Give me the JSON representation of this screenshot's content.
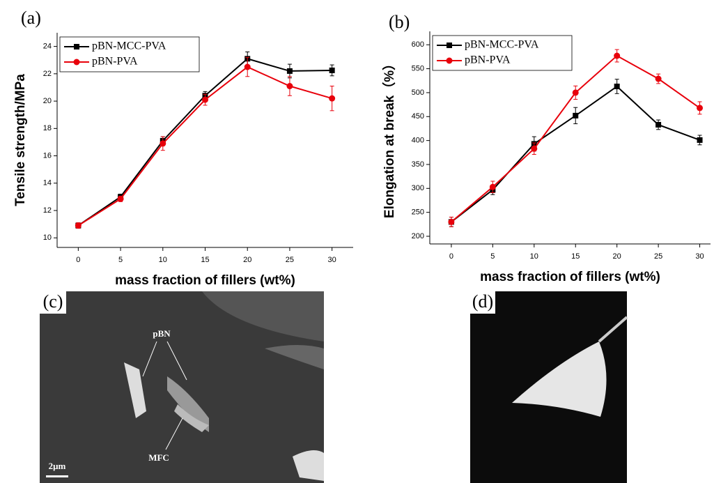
{
  "chart_data": [
    {
      "type": "line",
      "panel_label": "(a)",
      "xlabel": "mass fraction of fillers (wt%)",
      "ylabel": "Tensile strength/MPa",
      "x": [
        0,
        5,
        10,
        15,
        20,
        25,
        30
      ],
      "xlim": [
        -2.5,
        32.5
      ],
      "xticks": [
        0,
        5,
        10,
        15,
        20,
        25,
        30
      ],
      "ylim": [
        9.3,
        25
      ],
      "yticks": [
        10,
        12,
        14,
        16,
        18,
        20,
        22,
        24
      ],
      "legend": "upper left",
      "series": [
        {
          "name": "pBN-MCC-PVA",
          "color": "#000000",
          "marker": "square",
          "values": [
            10.9,
            13.0,
            17.1,
            20.4,
            23.1,
            22.2,
            22.25
          ],
          "errors": [
            0.2,
            0.2,
            0.3,
            0.3,
            0.5,
            0.5,
            0.4
          ]
        },
        {
          "name": "pBN-PVA",
          "color": "#e8000b",
          "marker": "circle",
          "values": [
            10.9,
            12.85,
            16.9,
            20.1,
            22.5,
            21.1,
            20.2
          ],
          "errors": [
            0.2,
            0.2,
            0.5,
            0.4,
            0.7,
            0.7,
            0.9
          ]
        }
      ]
    },
    {
      "type": "line",
      "panel_label": "(b)",
      "xlabel": "mass fraction of fillers (wt%)",
      "ylabel": "Elongation at break（%）",
      "x": [
        0,
        5,
        10,
        15,
        20,
        25,
        30
      ],
      "xlim": [
        -2.6,
        31.3
      ],
      "xticks": [
        0,
        5,
        10,
        15,
        20,
        25,
        30
      ],
      "ylim": [
        184,
        628
      ],
      "yticks": [
        200,
        250,
        300,
        350,
        400,
        450,
        500,
        550,
        600
      ],
      "legend": "upper left",
      "series": [
        {
          "name": "pBN-MCC-PVA",
          "color": "#000000",
          "marker": "square",
          "values": [
            230,
            297,
            393,
            452,
            513,
            433,
            401
          ],
          "errors": [
            10,
            10,
            15,
            17,
            15,
            10,
            10
          ]
        },
        {
          "name": "pBN-PVA",
          "color": "#e8000b",
          "marker": "circle",
          "values": [
            230,
            303,
            383,
            500,
            577,
            529,
            468
          ],
          "errors": [
            10,
            12,
            12,
            14,
            13,
            10,
            13
          ]
        }
      ]
    }
  ],
  "images": [
    {
      "label": "(c)",
      "annotations": [
        "pBN",
        "MFC",
        "2μm"
      ]
    },
    {
      "label": "(d)"
    }
  ]
}
